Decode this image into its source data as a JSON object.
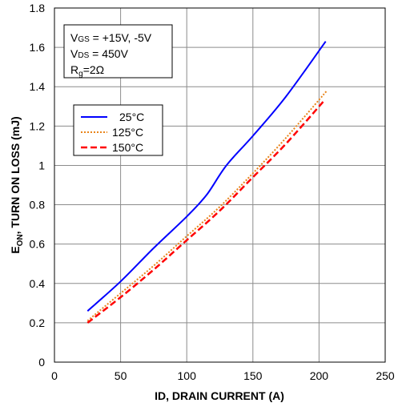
{
  "chart_data": {
    "type": "line",
    "xlabel": "ID, DRAIN CURRENT (A)",
    "ylabel_main": "E",
    "ylabel_sub": "ON",
    "ylabel_rest": ", TURN ON LOSS (mJ)",
    "xlim": [
      0,
      250
    ],
    "ylim": [
      0,
      1.8
    ],
    "x_ticks": [
      0,
      50,
      100,
      150,
      200,
      250
    ],
    "x_tick_labels": [
      "0",
      "50",
      "100",
      "150",
      "200",
      "250"
    ],
    "y_ticks": [
      0,
      0.2,
      0.4,
      0.6,
      0.8,
      1.0,
      1.2,
      1.4,
      1.6,
      1.8
    ],
    "y_tick_labels": [
      "0",
      "0.2",
      "0.4",
      "0.6",
      "0.8",
      "1",
      "1.2",
      "1.4",
      "1.6",
      "1.8"
    ],
    "grid": true,
    "legend_position": "left",
    "conditions": {
      "line1_pre": "V",
      "line1_sub": "GS",
      "line1_post": " = +15V, -5V",
      "line2_pre": "V",
      "line2_sub": "DS",
      "line2_post": " = 450V",
      "line3_pre": "R",
      "line3_sub": "g",
      "line3_post": "=2Ω"
    },
    "series": [
      {
        "name": "25°C",
        "color": "#0000ff",
        "dash": "solid",
        "x": [
          25,
          50,
          75,
          100,
          115,
          130,
          150,
          175,
          205
        ],
        "y": [
          0.26,
          0.41,
          0.58,
          0.74,
          0.85,
          1.0,
          1.15,
          1.35,
          1.63
        ]
      },
      {
        "name": "125°C",
        "color": "#e8841a",
        "dash": "dotted",
        "x": [
          25,
          50,
          75,
          100,
          125,
          150,
          175,
          206
        ],
        "y": [
          0.21,
          0.35,
          0.49,
          0.64,
          0.79,
          0.96,
          1.14,
          1.38
        ]
      },
      {
        "name": "150°C",
        "color": "#ff0000",
        "dash": "dashed",
        "x": [
          25,
          50,
          75,
          100,
          125,
          150,
          175,
          204
        ],
        "y": [
          0.2,
          0.33,
          0.47,
          0.62,
          0.77,
          0.94,
          1.11,
          1.33
        ]
      }
    ]
  }
}
